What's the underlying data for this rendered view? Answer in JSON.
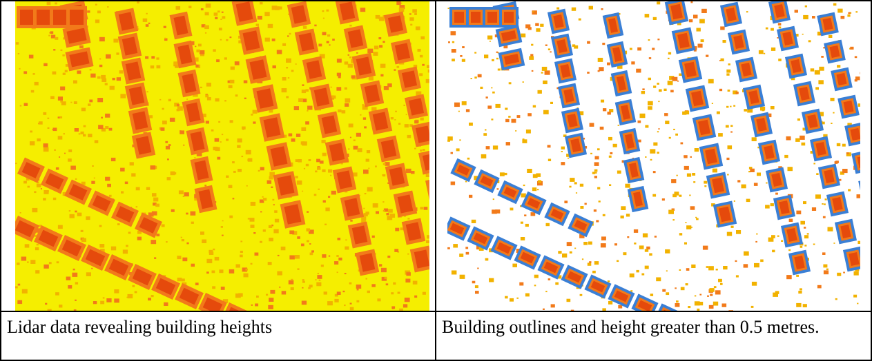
{
  "figure": {
    "left_panel": {
      "caption": "Lidar data revealing building heights",
      "background_color": "#f5ee00",
      "legend_colors": {
        "ground": "#f5ee00",
        "low": "#f2b200",
        "mid": "#f27a1a",
        "high": "#e54a0c"
      }
    },
    "right_panel": {
      "caption": "Building outlines and height greater than 0.5 metres.",
      "background_color": "#ffffff",
      "outline_color": "#3a7fd5",
      "legend_colors": {
        "low": "#f2b200",
        "mid": "#f27a1a",
        "high": "#e54a0c"
      }
    }
  }
}
